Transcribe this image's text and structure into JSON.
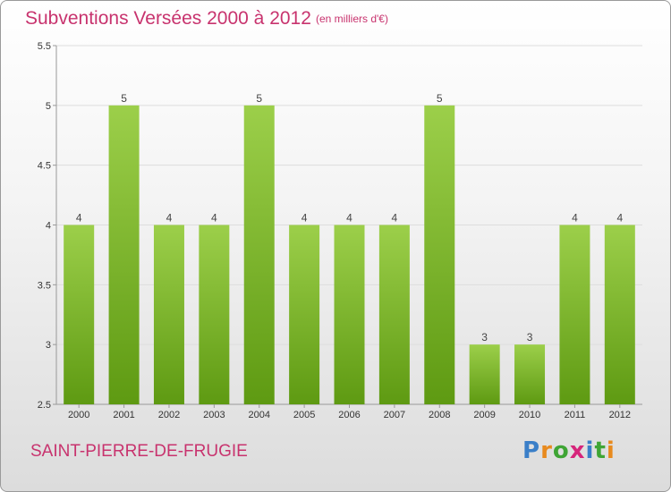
{
  "title": "Subventions Versées 2000 à 2012",
  "subtitle": "(en milliers d'€)",
  "place": "SAINT-PIERRE-DE-FRUGIE",
  "logo": {
    "text": "Proxiti",
    "colors": [
      "#3a7fc8",
      "#e88a1e",
      "#3fa535",
      "#d6257b",
      "#3a7fc8",
      "#3fa535",
      "#e88a1e"
    ]
  },
  "colors": {
    "bar_top": "#9ccf4a",
    "bar_bottom": "#5e9a12",
    "title": "#c8336e",
    "grid": "#dddddd",
    "axis": "#999999"
  },
  "chart_data": {
    "type": "bar",
    "categories": [
      "2000",
      "2001",
      "2002",
      "2003",
      "2004",
      "2005",
      "2006",
      "2007",
      "2008",
      "2009",
      "2010",
      "2011",
      "2012"
    ],
    "values": [
      4,
      5,
      4,
      4,
      5,
      4,
      4,
      4,
      5,
      3,
      3,
      4,
      4
    ],
    "ylim": [
      2.5,
      5.5
    ],
    "yticks": [
      "2.5",
      "3",
      "3.5",
      "4",
      "4.5",
      "5",
      "5.5"
    ],
    "grid": true
  }
}
